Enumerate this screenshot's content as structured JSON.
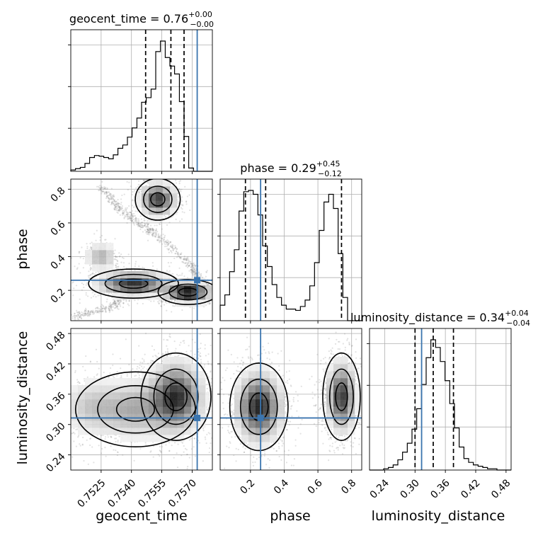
{
  "chart_data": {
    "type": "corner",
    "parameters": [
      "geocent_time",
      "phase",
      "luminosity_distance"
    ],
    "axis_labels": {
      "geocent_time": "geocent_time",
      "phase": "phase",
      "luminosity_distance": "luminosity_distance"
    },
    "ranges": {
      "geocent_time": [
        0.751,
        0.758
      ],
      "phase": [
        0.02,
        0.86
      ],
      "luminosity_distance": [
        0.21,
        0.49
      ]
    },
    "ticks": {
      "geocent_time": [
        0.7525,
        0.754,
        0.7555,
        0.757
      ],
      "phase": [
        0.2,
        0.4,
        0.6,
        0.8
      ],
      "luminosity_distance": [
        0.24,
        0.3,
        0.36,
        0.42,
        0.48
      ]
    },
    "tick_labels": {
      "geocent_time": [
        "0.7525",
        "0.7540",
        "0.7555",
        "0.7570"
      ],
      "phase": [
        "0.2",
        "0.4",
        "0.6",
        "0.8"
      ],
      "luminosity_distance": [
        "0.24",
        "0.30",
        "0.36",
        "0.42",
        "0.48"
      ]
    },
    "titles": {
      "geocent_time": {
        "prefix": "geocent_time = ",
        "median": "0.76",
        "plus": "+0.00",
        "minus": "−0.00"
      },
      "phase": {
        "prefix": "phase = ",
        "median": "0.29",
        "plus": "+0.45",
        "minus": "−0.12"
      },
      "luminosity_distance": {
        "prefix": "luminosity_distance = ",
        "median": "0.34",
        "plus": "+0.04",
        "minus": "−0.04"
      }
    },
    "quantiles": {
      "geocent_time": [
        0.7547,
        0.75595,
        0.7566
      ],
      "phase": [
        0.17,
        0.29,
        0.74
      ],
      "luminosity_distance": [
        0.3,
        0.336,
        0.376
      ]
    },
    "truths": {
      "geocent_time": 0.75725,
      "phase": 0.26,
      "luminosity_distance": 0.313
    },
    "histograms": {
      "geocent_time": {
        "edges": [
          0.751,
          0.75123,
          0.75147,
          0.7517,
          0.75193,
          0.75217,
          0.7524,
          0.75263,
          0.75287,
          0.7531,
          0.75333,
          0.75357,
          0.7538,
          0.75403,
          0.75427,
          0.7545,
          0.75473,
          0.75497,
          0.7552,
          0.75543,
          0.75567,
          0.7559,
          0.75613,
          0.75637,
          0.7566,
          0.75683,
          0.75707,
          0.7573,
          0.75753,
          0.75777,
          0.758
        ],
        "counts": [
          2,
          4,
          6,
          12,
          21,
          24,
          23,
          21,
          19,
          25,
          35,
          40,
          52,
          66,
          81,
          105,
          112,
          125,
          182,
          198,
          173,
          160,
          148,
          106,
          53,
          5,
          0,
          0,
          0,
          0
        ]
      },
      "phase": {
        "edges": [
          0.02,
          0.048,
          0.076,
          0.104,
          0.132,
          0.16,
          0.188,
          0.216,
          0.244,
          0.272,
          0.3,
          0.328,
          0.356,
          0.384,
          0.412,
          0.44,
          0.468,
          0.496,
          0.524,
          0.552,
          0.58,
          0.608,
          0.636,
          0.664,
          0.692,
          0.72,
          0.748,
          0.776,
          0.804,
          0.832,
          0.86
        ],
        "counts": [
          12,
          20,
          38,
          55,
          85,
          100,
          101,
          98,
          82,
          58,
          42,
          28,
          18,
          12,
          9,
          9,
          8,
          11,
          16,
          27,
          45,
          70,
          92,
          98,
          87,
          52,
          18,
          0,
          0,
          0
        ]
      },
      "luminosity_distance": {
        "edges": [
          0.21,
          0.2193,
          0.2287,
          0.238,
          0.2473,
          0.2567,
          0.266,
          0.2753,
          0.2847,
          0.294,
          0.3033,
          0.3127,
          0.322,
          0.3313,
          0.3407,
          0.35,
          0.3593,
          0.3687,
          0.378,
          0.3873,
          0.3967,
          0.406,
          0.4153,
          0.4247,
          0.434,
          0.4433,
          0.4527,
          0.462,
          0.4713,
          0.4807,
          0.49
        ],
        "counts": [
          0,
          0,
          0,
          1,
          2,
          4,
          8,
          14,
          21,
          32,
          48,
          67,
          88,
          102,
          96,
          85,
          70,
          52,
          33,
          18,
          9,
          6,
          4,
          3,
          2,
          1,
          1,
          0,
          0,
          0
        ]
      }
    },
    "density_modes": {
      "geocent_time_vs_phase": [
        [
          0.7553,
          0.74,
          0.00045,
          0.05,
          0.9
        ],
        [
          0.7541,
          0.24,
          0.0009,
          0.035,
          1.0
        ],
        [
          0.7568,
          0.19,
          0.0006,
          0.03,
          1.2
        ],
        [
          0.7525,
          0.4,
          0.0004,
          0.04,
          0.35
        ]
      ],
      "geocent_time_vs_luminosity_distance": [
        [
          0.7562,
          0.355,
          0.0007,
          0.035,
          1.3
        ],
        [
          0.7542,
          0.33,
          0.0012,
          0.03,
          0.55
        ],
        [
          0.752,
          0.335,
          0.0008,
          0.03,
          0.3
        ]
      ],
      "phase_vs_luminosity_distance": [
        [
          0.25,
          0.335,
          0.07,
          0.035,
          1.0
        ],
        [
          0.74,
          0.355,
          0.045,
          0.035,
          0.9
        ]
      ]
    },
    "density_curve": {
      "geocent_time_vs_phase": [
        [
          0.751,
          0.04
        ],
        [
          0.753,
          0.1
        ],
        [
          0.7545,
          0.22
        ],
        [
          0.7556,
          0.2
        ],
        [
          0.7568,
          0.2
        ],
        [
          0.7575,
          0.21
        ],
        [
          0.757,
          0.35
        ],
        [
          0.755,
          0.55
        ],
        [
          0.7535,
          0.67
        ],
        [
          0.7525,
          0.82
        ]
      ]
    }
  }
}
